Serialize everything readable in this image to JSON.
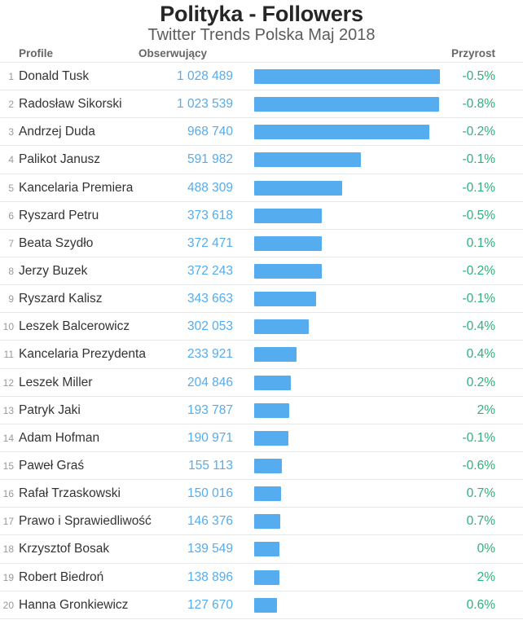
{
  "header": {
    "title": "Polityka - Followers",
    "subtitle": "Twitter Trends Polska Maj 2018"
  },
  "columns": {
    "profile": "Profile",
    "followers": "Obserwujący",
    "growth": "Przyrost"
  },
  "colors": {
    "accent_blue": "#55acee",
    "growth_green": "#2ab27b",
    "separator": "#e8e8e8",
    "name_text": "#333333",
    "rank_text": "#999999",
    "header_text": "#666666"
  },
  "rows": [
    {
      "rank": "1",
      "name": "Donald Tusk",
      "followers_label": "1 028 489",
      "followers": 1028489,
      "growth": "-0.5%"
    },
    {
      "rank": "2",
      "name": "Radosław Sikorski",
      "followers_label": "1 023 539",
      "followers": 1023539,
      "growth": "-0.8%"
    },
    {
      "rank": "3",
      "name": "Andrzej Duda",
      "followers_label": "968 740",
      "followers": 968740,
      "growth": "-0.2%"
    },
    {
      "rank": "4",
      "name": "Palikot Janusz",
      "followers_label": "591 982",
      "followers": 591982,
      "growth": "-0.1%"
    },
    {
      "rank": "5",
      "name": "Kancelaria Premiera",
      "followers_label": "488 309",
      "followers": 488309,
      "growth": "-0.1%"
    },
    {
      "rank": "6",
      "name": "Ryszard Petru",
      "followers_label": "373 618",
      "followers": 373618,
      "growth": "-0.5%"
    },
    {
      "rank": "7",
      "name": "Beata Szydło",
      "followers_label": "372 471",
      "followers": 372471,
      "growth": "0.1%"
    },
    {
      "rank": "8",
      "name": "Jerzy Buzek",
      "followers_label": "372 243",
      "followers": 372243,
      "growth": "-0.2%"
    },
    {
      "rank": "9",
      "name": "Ryszard Kalisz",
      "followers_label": "343 663",
      "followers": 343663,
      "growth": "-0.1%"
    },
    {
      "rank": "10",
      "name": "Leszek Balcerowicz",
      "followers_label": "302 053",
      "followers": 302053,
      "growth": "-0.4%"
    },
    {
      "rank": "11",
      "name": "Kancelaria Prezydenta",
      "followers_label": "233 921",
      "followers": 233921,
      "growth": "0.4%"
    },
    {
      "rank": "12",
      "name": "Leszek Miller",
      "followers_label": "204 846",
      "followers": 204846,
      "growth": "0.2%"
    },
    {
      "rank": "13",
      "name": "Patryk Jaki",
      "followers_label": "193 787",
      "followers": 193787,
      "growth": "2%"
    },
    {
      "rank": "14",
      "name": "Adam Hofman",
      "followers_label": "190 971",
      "followers": 190971,
      "growth": "-0.1%"
    },
    {
      "rank": "15",
      "name": "Paweł Graś",
      "followers_label": "155 113",
      "followers": 155113,
      "growth": "-0.6%"
    },
    {
      "rank": "16",
      "name": "Rafał Trzaskowski",
      "followers_label": "150 016",
      "followers": 150016,
      "growth": "0.7%"
    },
    {
      "rank": "17",
      "name": "Prawo i Sprawiedliwość",
      "followers_label": "146 376",
      "followers": 146376,
      "growth": "0.7%"
    },
    {
      "rank": "18",
      "name": "Krzysztof Bosak",
      "followers_label": "139 549",
      "followers": 139549,
      "growth": "0%"
    },
    {
      "rank": "19",
      "name": "Robert Biedroń",
      "followers_label": "138 896",
      "followers": 138896,
      "growth": "2%"
    },
    {
      "rank": "20",
      "name": "Hanna Gronkiewicz",
      "followers_label": "127 670",
      "followers": 127670,
      "growth": "0.6%"
    }
  ],
  "chart_data": {
    "type": "bar",
    "orientation": "horizontal",
    "title": "Polityka - Followers",
    "subtitle": "Twitter Trends Polska Maj 2018",
    "xlabel": "Obserwujący",
    "ylabel": "Profile",
    "xlim": [
      0,
      1028489
    ],
    "grid": false,
    "legend": "none",
    "categories": [
      "Donald Tusk",
      "Radosław Sikorski",
      "Andrzej Duda",
      "Palikot Janusz",
      "Kancelaria Premiera",
      "Ryszard Petru",
      "Beata Szydło",
      "Jerzy Buzek",
      "Ryszard Kalisz",
      "Leszek Balcerowicz",
      "Kancelaria Prezydenta",
      "Leszek Miller",
      "Patryk Jaki",
      "Adam Hofman",
      "Paweł Graś",
      "Rafał Trzaskowski",
      "Prawo i Sprawiedliwość",
      "Krzysztof Bosak",
      "Robert Biedroń",
      "Hanna Gronkiewicz"
    ],
    "values": [
      1028489,
      1023539,
      968740,
      591982,
      488309,
      373618,
      372471,
      372243,
      343663,
      302053,
      233921,
      204846,
      193787,
      190971,
      155113,
      150016,
      146376,
      139549,
      138896,
      127670
    ],
    "growth_pct": [
      -0.5,
      -0.8,
      -0.2,
      -0.1,
      -0.1,
      -0.5,
      0.1,
      -0.2,
      -0.1,
      -0.4,
      0.4,
      0.2,
      2,
      -0.1,
      -0.6,
      0.7,
      0.7,
      0,
      2,
      0.6
    ],
    "bar_color": "#55acee"
  }
}
